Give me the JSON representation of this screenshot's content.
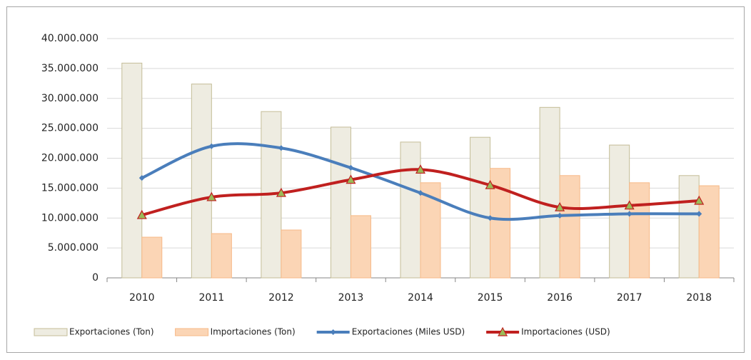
{
  "chart_data": {
    "type": "bar",
    "categories": [
      "2010",
      "2011",
      "2012",
      "2013",
      "2014",
      "2015",
      "2016",
      "2017",
      "2018"
    ],
    "series": [
      {
        "name": "Exportaciones (Ton)",
        "type": "bar",
        "color": "#eeece1",
        "stroke": "#c4bd97",
        "values": [
          35900000,
          32400000,
          27800000,
          25200000,
          22700000,
          23500000,
          28500000,
          22200000,
          17100000
        ]
      },
      {
        "name": "Importaciones (Ton)",
        "type": "bar",
        "color": "#fbd5b5",
        "stroke": "#f7b987",
        "values": [
          6800000,
          7400000,
          8000000,
          10400000,
          15900000,
          18300000,
          17100000,
          15900000,
          15400000
        ]
      },
      {
        "name": "Exportaciones (Miles USD)",
        "type": "line",
        "marker": "diamond",
        "color": "#4a7ebb",
        "values": [
          16700000,
          22000000,
          21700000,
          18400000,
          14200000,
          10000000,
          10400000,
          10700000,
          10700000
        ]
      },
      {
        "name": "Importaciones (USD)",
        "type": "line",
        "marker": "triangle",
        "color": "#c0201f",
        "values": [
          10500000,
          13500000,
          14200000,
          16400000,
          18100000,
          15500000,
          11800000,
          12100000,
          12900000
        ]
      }
    ],
    "smooth": true,
    "ylim": [
      0,
      40000000
    ],
    "yticks": [
      0,
      {
        "value": 5000000,
        "label": "5.000.000"
      },
      {
        "value": 10000000,
        "label": "10.000.000"
      },
      {
        "value": 15000000,
        "label": "15.000.000"
      },
      {
        "value": 20000000,
        "label": "20.000.000"
      },
      {
        "value": 25000000,
        "label": "25.000.000"
      },
      {
        "value": 30000000,
        "label": "30.000.000"
      },
      {
        "value": 35000000,
        "label": "35.000.000"
      },
      {
        "value": 40000000,
        "label": "40.000.000"
      }
    ],
    "grid": true,
    "legend": "bottom"
  }
}
